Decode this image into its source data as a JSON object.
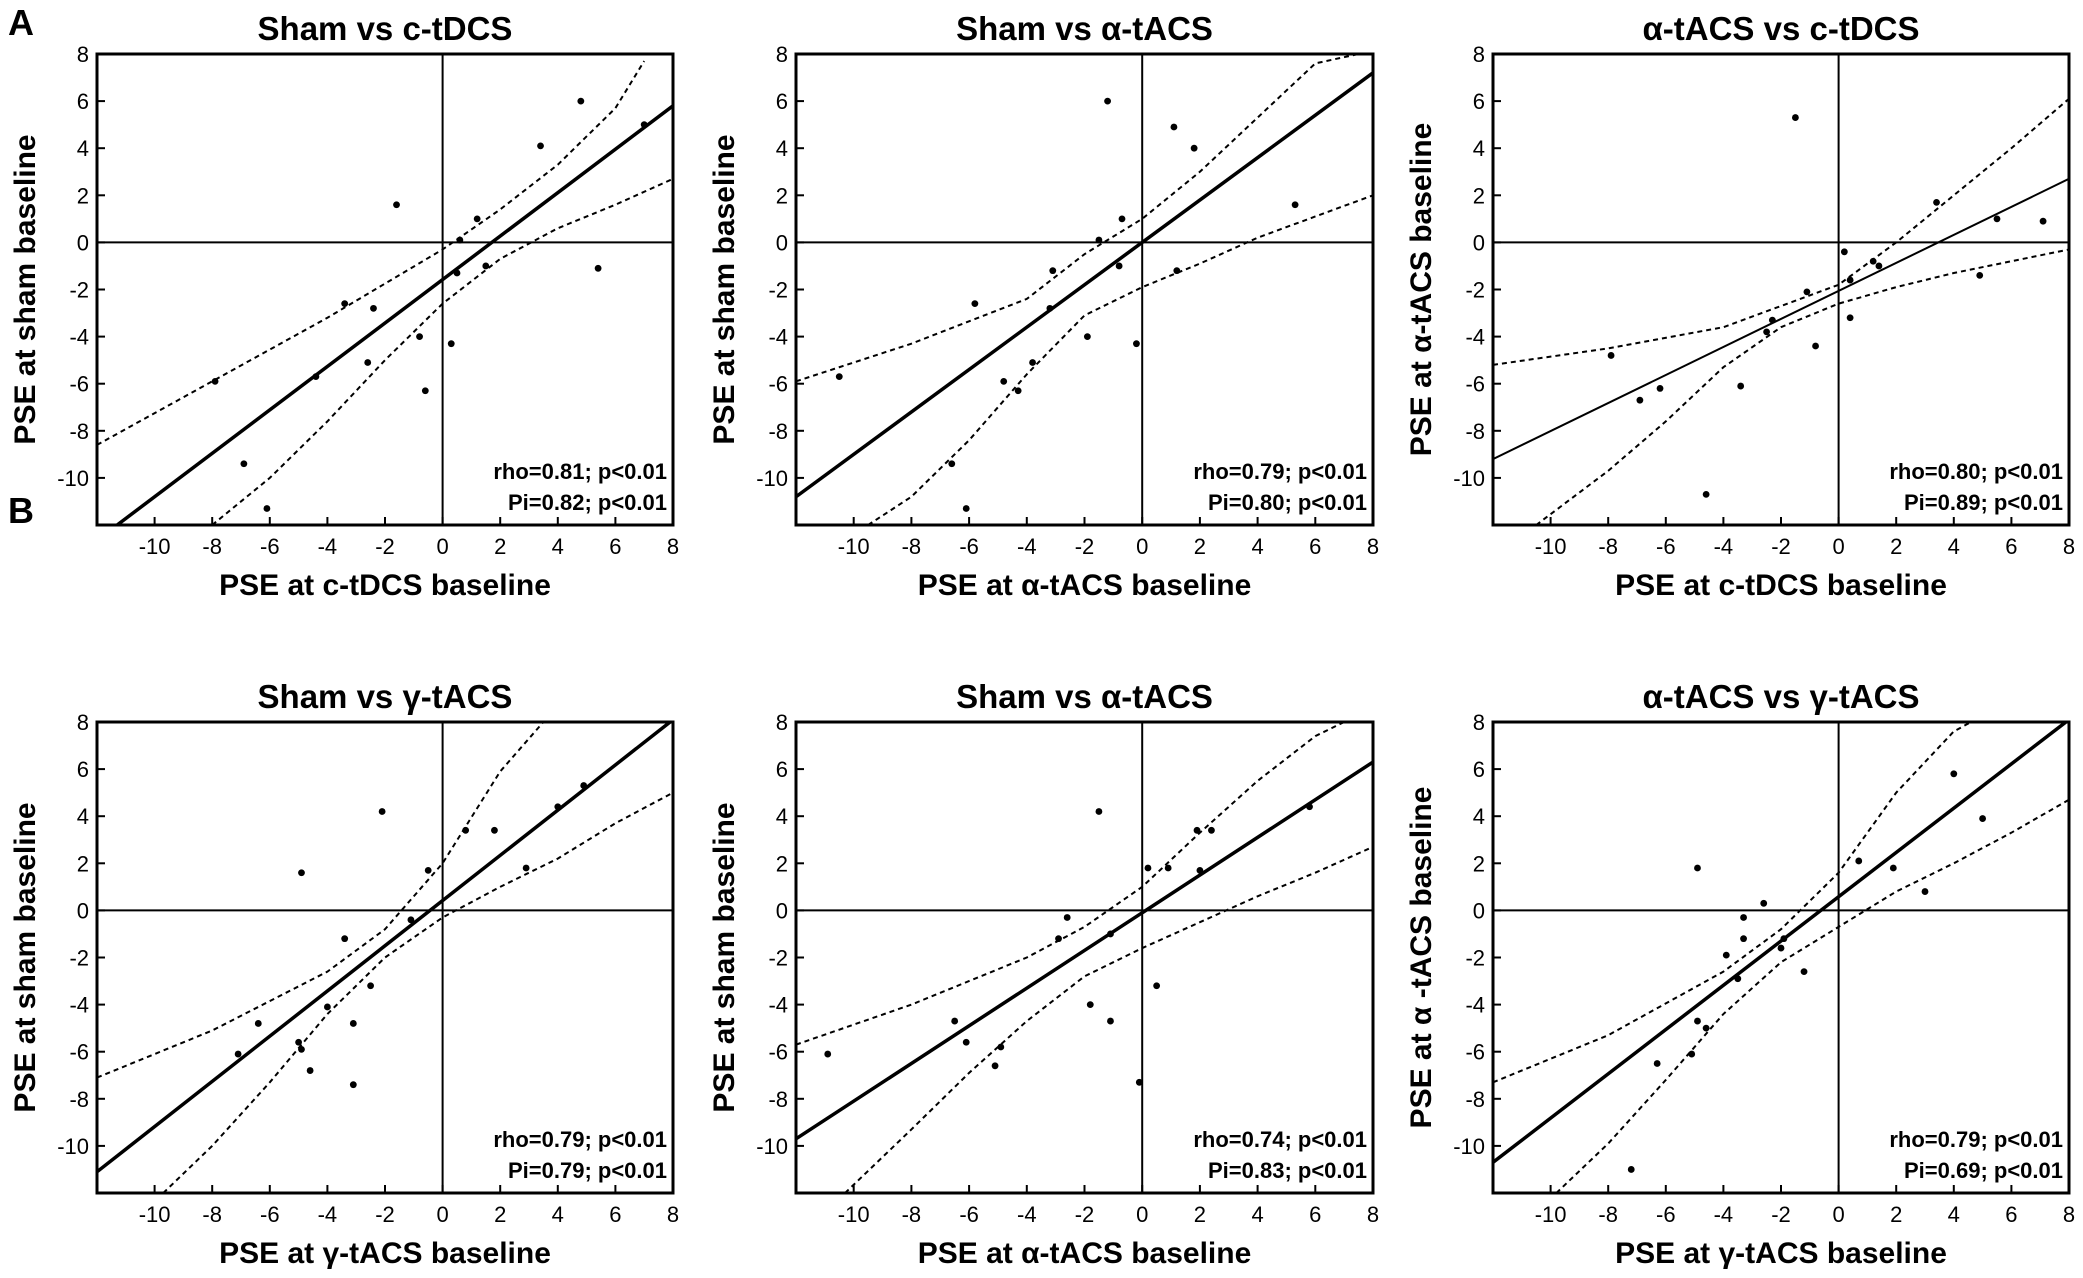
{
  "figure": {
    "row_labels": [
      "A",
      "B"
    ]
  },
  "chart_data": [
    {
      "type": "scatter",
      "title": "Sham vs c-tDCS",
      "xlabel": "PSE at c-tDCS baseline",
      "ylabel": "PSE at sham baseline",
      "xlim": [
        -12,
        8
      ],
      "ylim": [
        -12,
        8
      ],
      "xticks": [
        -10,
        -8,
        -6,
        -4,
        -2,
        0,
        2,
        4,
        6,
        8
      ],
      "yticks": [
        -10,
        -8,
        -6,
        -4,
        -2,
        0,
        2,
        4,
        6,
        8
      ],
      "stats": [
        "rho=0.81; p<0.01",
        "Pi=0.82; p<0.01"
      ],
      "fit": {
        "x": [
          -11.3,
          8
        ],
        "y": [
          -12,
          5.8
        ],
        "style": "bold"
      },
      "ci_upper": {
        "x": [
          -12,
          -8,
          -4,
          0,
          2,
          4,
          6,
          7
        ],
        "y": [
          -8.6,
          -5.9,
          -3.2,
          -0.3,
          1.4,
          3.3,
          5.7,
          7.7
        ]
      },
      "ci_lower": {
        "x": [
          -8,
          -6,
          -4,
          -2,
          0,
          2,
          4,
          6,
          8
        ],
        "y": [
          -12,
          -10,
          -7.6,
          -5.0,
          -2.6,
          -0.7,
          0.6,
          1.6,
          2.7
        ]
      },
      "points": [
        {
          "x": 4.8,
          "y": 6.0
        },
        {
          "x": 7.0,
          "y": 5.0
        },
        {
          "x": 3.4,
          "y": 4.1
        },
        {
          "x": 1.2,
          "y": 1.0
        },
        {
          "x": -1.6,
          "y": 1.6
        },
        {
          "x": 0.6,
          "y": 0.1
        },
        {
          "x": 0.5,
          "y": -1.3
        },
        {
          "x": 1.5,
          "y": -1.0
        },
        {
          "x": 5.4,
          "y": -1.1
        },
        {
          "x": -3.4,
          "y": -2.6
        },
        {
          "x": -2.4,
          "y": -2.8
        },
        {
          "x": -0.8,
          "y": -4.0
        },
        {
          "x": 0.3,
          "y": -4.3
        },
        {
          "x": -2.6,
          "y": -5.1
        },
        {
          "x": -4.4,
          "y": -5.7
        },
        {
          "x": -0.6,
          "y": -6.3
        },
        {
          "x": -7.9,
          "y": -5.9
        },
        {
          "x": -6.9,
          "y": -9.4
        },
        {
          "x": -6.1,
          "y": -11.3
        }
      ]
    },
    {
      "type": "scatter",
      "title": "Sham vs α-tACS",
      "xlabel": "PSE at α-tACS baseline",
      "ylabel": "PSE at sham baseline",
      "xlim": [
        -12,
        8
      ],
      "ylim": [
        -12,
        8
      ],
      "xticks": [
        -10,
        -8,
        -6,
        -4,
        -2,
        0,
        2,
        4,
        6,
        8
      ],
      "yticks": [
        -10,
        -8,
        -6,
        -4,
        -2,
        0,
        2,
        4,
        6,
        8
      ],
      "stats": [
        "rho=0.79; p<0.01",
        "Pi=0.80; p<0.01"
      ],
      "fit": {
        "x": [
          -12,
          8
        ],
        "y": [
          -10.8,
          7.2
        ],
        "style": "bold"
      },
      "ci_upper": {
        "x": [
          -12,
          -8,
          -4,
          -2,
          0,
          2,
          4,
          6,
          7.5
        ],
        "y": [
          -5.9,
          -4.3,
          -2.4,
          -0.5,
          1.0,
          3.0,
          5.3,
          7.6,
          8.0
        ]
      },
      "ci_lower": {
        "x": [
          -9.5,
          -8,
          -6,
          -4,
          -2,
          0,
          2,
          4,
          6,
          8
        ],
        "y": [
          -12,
          -10.8,
          -8.4,
          -5.6,
          -3.1,
          -1.9,
          -0.9,
          0.2,
          1.1,
          2.0
        ]
      },
      "points": [
        {
          "x": -1.2,
          "y": 6.0
        },
        {
          "x": 1.1,
          "y": 4.9
        },
        {
          "x": 1.8,
          "y": 4.0
        },
        {
          "x": 5.3,
          "y": 1.6
        },
        {
          "x": -0.7,
          "y": 1.0
        },
        {
          "x": -1.5,
          "y": 0.1
        },
        {
          "x": -0.8,
          "y": -1.0
        },
        {
          "x": 1.2,
          "y": -1.2
        },
        {
          "x": -3.1,
          "y": -1.2
        },
        {
          "x": -5.8,
          "y": -2.6
        },
        {
          "x": -3.2,
          "y": -2.8
        },
        {
          "x": -1.9,
          "y": -4.0
        },
        {
          "x": -0.2,
          "y": -4.3
        },
        {
          "x": -3.8,
          "y": -5.1
        },
        {
          "x": -10.5,
          "y": -5.7
        },
        {
          "x": -4.8,
          "y": -5.9
        },
        {
          "x": -4.3,
          "y": -6.3
        },
        {
          "x": -6.6,
          "y": -9.4
        },
        {
          "x": -6.1,
          "y": -11.3
        }
      ]
    },
    {
      "type": "scatter",
      "title": "α-tACS vs c-tDCS",
      "xlabel": "PSE at c-tDCS baseline",
      "ylabel": "PSE at α-tACS baseline",
      "xlim": [
        -12,
        8
      ],
      "ylim": [
        -12,
        8
      ],
      "xticks": [
        -10,
        -8,
        -6,
        -4,
        -2,
        0,
        2,
        4,
        6,
        8
      ],
      "yticks": [
        -10,
        -8,
        -6,
        -4,
        -2,
        0,
        2,
        4,
        6,
        8
      ],
      "stats": [
        "rho=0.80; p<0.01",
        "Pi=0.89; p<0.01"
      ],
      "fit": {
        "x": [
          -12,
          8
        ],
        "y": [
          -9.2,
          2.7
        ],
        "style": "thin"
      },
      "ci_upper": {
        "x": [
          -12,
          -8,
          -4,
          0,
          2,
          4,
          6,
          8
        ],
        "y": [
          -5.2,
          -4.5,
          -3.6,
          -1.8,
          0.0,
          2.0,
          4.0,
          6.1
        ]
      },
      "ci_lower": {
        "x": [
          -10.5,
          -8,
          -6,
          -4,
          -2,
          0,
          2,
          4,
          6,
          8
        ],
        "y": [
          -12,
          -9.7,
          -7.6,
          -5.3,
          -3.6,
          -2.6,
          -1.9,
          -1.3,
          -0.8,
          -0.3
        ]
      },
      "points": [
        {
          "x": -1.5,
          "y": 5.3
        },
        {
          "x": 3.4,
          "y": 1.7
        },
        {
          "x": 5.5,
          "y": 1.0
        },
        {
          "x": 7.1,
          "y": 0.9
        },
        {
          "x": 0.2,
          "y": -0.4
        },
        {
          "x": 1.2,
          "y": -0.8
        },
        {
          "x": 1.4,
          "y": -1.0
        },
        {
          "x": 0.4,
          "y": -1.6
        },
        {
          "x": 4.9,
          "y": -1.4
        },
        {
          "x": -1.1,
          "y": -2.1
        },
        {
          "x": -2.3,
          "y": -3.3
        },
        {
          "x": 0.4,
          "y": -3.2
        },
        {
          "x": -2.5,
          "y": -3.8
        },
        {
          "x": -0.8,
          "y": -4.4
        },
        {
          "x": -7.9,
          "y": -4.8
        },
        {
          "x": -6.2,
          "y": -6.2
        },
        {
          "x": -3.4,
          "y": -6.1
        },
        {
          "x": -6.9,
          "y": -6.7
        },
        {
          "x": -4.6,
          "y": -10.7
        }
      ]
    },
    {
      "type": "scatter",
      "title": "Sham vs γ-tACS",
      "xlabel": "PSE at γ-tACS baseline",
      "ylabel": "PSE at sham baseline",
      "xlim": [
        -12,
        8
      ],
      "ylim": [
        -12,
        8
      ],
      "xticks": [
        -10,
        -8,
        -6,
        -4,
        -2,
        0,
        2,
        4,
        6,
        8
      ],
      "yticks": [
        -10,
        -8,
        -6,
        -4,
        -2,
        0,
        2,
        4,
        6,
        8
      ],
      "stats": [
        "rho=0.79; p<0.01",
        "Pi=0.79; p<0.01"
      ],
      "fit": {
        "x": [
          -12,
          7.9
        ],
        "y": [
          -11.1,
          8.0
        ],
        "style": "bold"
      },
      "ci_upper": {
        "x": [
          -12,
          -8,
          -4,
          -2,
          0,
          2,
          3.5
        ],
        "y": [
          -7.1,
          -5.1,
          -2.6,
          -0.8,
          2.0,
          5.9,
          8.0
        ]
      },
      "ci_lower": {
        "x": [
          -9.7,
          -8,
          -6,
          -4,
          -2,
          0,
          2,
          4,
          6,
          8
        ],
        "y": [
          -12,
          -10.0,
          -7.3,
          -4.4,
          -2.0,
          -0.3,
          1.0,
          2.2,
          3.7,
          5.0
        ]
      },
      "points": [
        {
          "x": 4.9,
          "y": 5.3
        },
        {
          "x": 4.0,
          "y": 4.4
        },
        {
          "x": -2.1,
          "y": 4.2
        },
        {
          "x": 0.8,
          "y": 3.4
        },
        {
          "x": 1.8,
          "y": 3.4
        },
        {
          "x": 2.9,
          "y": 1.8
        },
        {
          "x": -0.5,
          "y": 1.7
        },
        {
          "x": -4.9,
          "y": 1.6
        },
        {
          "x": -1.1,
          "y": -0.4
        },
        {
          "x": -3.4,
          "y": -1.2
        },
        {
          "x": -2.5,
          "y": -3.2
        },
        {
          "x": -4.0,
          "y": -4.1
        },
        {
          "x": -3.1,
          "y": -4.8
        },
        {
          "x": -6.4,
          "y": -4.8
        },
        {
          "x": -5.0,
          "y": -5.6
        },
        {
          "x": -4.9,
          "y": -5.9
        },
        {
          "x": -7.1,
          "y": -6.1
        },
        {
          "x": -4.6,
          "y": -6.8
        },
        {
          "x": -3.1,
          "y": -7.4
        }
      ]
    },
    {
      "type": "scatter",
      "title": "Sham vs α-tACS",
      "xlabel": "PSE at α-tACS baseline",
      "ylabel": "PSE at sham baseline",
      "xlim": [
        -12,
        8
      ],
      "ylim": [
        -12,
        8
      ],
      "xticks": [
        -10,
        -8,
        -6,
        -4,
        -2,
        0,
        2,
        4,
        6,
        8
      ],
      "yticks": [
        -10,
        -8,
        -6,
        -4,
        -2,
        0,
        2,
        4,
        6,
        8
      ],
      "stats": [
        "rho=0.74; p<0.01",
        "Pi=0.83; p<0.01"
      ],
      "fit": {
        "x": [
          -12,
          8
        ],
        "y": [
          -9.7,
          6.3
        ],
        "style": "bold"
      },
      "ci_upper": {
        "x": [
          -12,
          -8,
          -4,
          -2,
          0,
          2,
          4,
          6,
          7
        ],
        "y": [
          -5.7,
          -4.0,
          -2.0,
          -0.7,
          1.0,
          3.3,
          5.5,
          7.4,
          8.0
        ]
      },
      "ci_lower": {
        "x": [
          -10.3,
          -8,
          -6,
          -4,
          -2,
          0,
          2,
          4,
          6,
          8
        ],
        "y": [
          -12,
          -9.3,
          -6.9,
          -4.7,
          -2.8,
          -1.6,
          -0.5,
          0.6,
          1.6,
          2.7
        ]
      },
      "points": [
        {
          "x": 5.8,
          "y": 4.4
        },
        {
          "x": -1.5,
          "y": 4.2
        },
        {
          "x": 1.9,
          "y": 3.4
        },
        {
          "x": 2.4,
          "y": 3.4
        },
        {
          "x": 0.2,
          "y": 1.8
        },
        {
          "x": 0.9,
          "y": 1.8
        },
        {
          "x": 2.0,
          "y": 1.7
        },
        {
          "x": -2.6,
          "y": -0.3
        },
        {
          "x": -2.9,
          "y": -1.2
        },
        {
          "x": -1.1,
          "y": -1.0
        },
        {
          "x": 0.5,
          "y": -3.2
        },
        {
          "x": -1.8,
          "y": -4.0
        },
        {
          "x": -6.5,
          "y": -4.7
        },
        {
          "x": -1.1,
          "y": -4.7
        },
        {
          "x": -6.1,
          "y": -5.6
        },
        {
          "x": -4.9,
          "y": -5.8
        },
        {
          "x": -10.9,
          "y": -6.1
        },
        {
          "x": -5.1,
          "y": -6.6
        },
        {
          "x": -0.1,
          "y": -7.3
        }
      ]
    },
    {
      "type": "scatter",
      "title": "α-tACS vs γ-tACS",
      "xlabel": "PSE at γ-tACS baseline",
      "ylabel": "PSE at α -tACS baseline",
      "xlim": [
        -12,
        8
      ],
      "ylim": [
        -12,
        8
      ],
      "xticks": [
        -10,
        -8,
        -6,
        -4,
        -2,
        0,
        2,
        4,
        6,
        8
      ],
      "yticks": [
        -10,
        -8,
        -6,
        -4,
        -2,
        0,
        2,
        4,
        6,
        8
      ],
      "stats": [
        "rho=0.79; p<0.01",
        "Pi=0.69; p<0.01"
      ],
      "fit": {
        "x": [
          -12,
          8
        ],
        "y": [
          -10.7,
          8.1
        ],
        "style": "bold"
      },
      "ci_upper": {
        "x": [
          -12,
          -8,
          -4,
          -2,
          0,
          2,
          4,
          4.6
        ],
        "y": [
          -7.3,
          -5.3,
          -2.6,
          -0.8,
          1.6,
          5.0,
          7.6,
          8.0
        ]
      },
      "ci_lower": {
        "x": [
          -9.8,
          -8,
          -6,
          -4,
          -2,
          0,
          2,
          4,
          6,
          8
        ],
        "y": [
          -12,
          -9.9,
          -7.2,
          -4.4,
          -2.2,
          -0.7,
          0.8,
          2.0,
          3.3,
          4.7
        ]
      },
      "points": [
        {
          "x": 4.0,
          "y": 5.8
        },
        {
          "x": 5.0,
          "y": 3.9
        },
        {
          "x": 0.7,
          "y": 2.1
        },
        {
          "x": -4.9,
          "y": 1.8
        },
        {
          "x": 1.9,
          "y": 1.8
        },
        {
          "x": 3.0,
          "y": 0.8
        },
        {
          "x": -2.6,
          "y": 0.3
        },
        {
          "x": -3.3,
          "y": -0.3
        },
        {
          "x": -1.9,
          "y": -1.2
        },
        {
          "x": -3.3,
          "y": -1.2
        },
        {
          "x": -2.0,
          "y": -1.6
        },
        {
          "x": -3.9,
          "y": -1.9
        },
        {
          "x": -1.2,
          "y": -2.6
        },
        {
          "x": -3.5,
          "y": -2.9
        },
        {
          "x": -4.9,
          "y": -4.7
        },
        {
          "x": -4.6,
          "y": -5.0
        },
        {
          "x": -5.1,
          "y": -6.1
        },
        {
          "x": -6.3,
          "y": -6.5
        },
        {
          "x": -7.2,
          "y": -11.0
        }
      ]
    }
  ]
}
